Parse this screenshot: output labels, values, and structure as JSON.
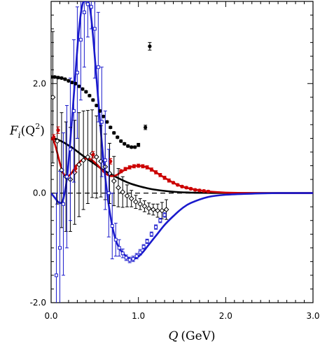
{
  "chart_data": {
    "type": "line",
    "title": "",
    "xlabel": "Q (GeV)",
    "xlabel_var": "Q",
    "xlabel_unit": "(GeV)",
    "ylabel": "F_i(Q^2)",
    "ylabel_main": "F",
    "ylabel_sub": "i",
    "ylabel_arg": "(Q",
    "ylabel_sup": "2",
    "ylabel_close": ")",
    "xlim": [
      0,
      3
    ],
    "ylim": [
      -2,
      3.5
    ],
    "x_ticks": [
      0.0,
      1.0,
      2.0,
      3.0
    ],
    "x_tick_labels": [
      "0.0",
      "1.0",
      "2.0",
      "3.0"
    ],
    "y_ticks": [
      -2.0,
      0.0,
      2.0
    ],
    "y_tick_labels": [
      "-2.0",
      "0.0",
      "2.0"
    ],
    "reference_line": {
      "y": 0,
      "style": "dashed",
      "color": "#000000"
    },
    "series": [
      {
        "kind": "curve",
        "color": "#000000",
        "x": [
          0,
          0.05,
          0.1,
          0.15,
          0.2,
          0.25,
          0.3,
          0.4,
          0.5,
          0.6,
          0.7,
          0.8,
          0.9,
          1.0,
          1.1,
          1.2,
          1.3,
          1.4,
          1.5,
          1.6,
          1.7,
          1.8,
          2.0,
          2.2,
          2.5,
          3.0
        ],
        "y": [
          1.0,
          0.99,
          0.96,
          0.92,
          0.87,
          0.82,
          0.76,
          0.64,
          0.53,
          0.42,
          0.33,
          0.25,
          0.18,
          0.13,
          0.09,
          0.06,
          0.04,
          0.025,
          0.015,
          0.01,
          0.006,
          0.004,
          0.002,
          0.001,
          0.0,
          0.0
        ]
      },
      {
        "kind": "curve",
        "color": "#cc0000",
        "x": [
          0,
          0.03,
          0.06,
          0.1,
          0.14,
          0.18,
          0.22,
          0.26,
          0.3,
          0.35,
          0.4,
          0.45,
          0.5,
          0.55,
          0.6,
          0.65,
          0.7,
          0.75,
          0.8,
          0.85,
          0.9,
          0.95,
          1.0,
          1.05,
          1.1,
          1.15,
          1.2,
          1.3,
          1.4,
          1.5,
          1.6,
          1.7,
          1.8,
          2.0,
          2.2,
          2.5,
          3.0
        ],
        "y": [
          1.0,
          0.95,
          0.8,
          0.55,
          0.36,
          0.3,
          0.34,
          0.43,
          0.52,
          0.6,
          0.63,
          0.62,
          0.56,
          0.48,
          0.39,
          0.33,
          0.31,
          0.33,
          0.38,
          0.43,
          0.47,
          0.49,
          0.5,
          0.49,
          0.47,
          0.43,
          0.38,
          0.28,
          0.19,
          0.12,
          0.08,
          0.05,
          0.03,
          0.01,
          0.003,
          0.0,
          0.0
        ]
      },
      {
        "kind": "curve",
        "color": "#1a1acc",
        "x": [
          0,
          0.04,
          0.08,
          0.11,
          0.14,
          0.18,
          0.22,
          0.27,
          0.32,
          0.36,
          0.4,
          0.43,
          0.46,
          0.5,
          0.55,
          0.6,
          0.65,
          0.7,
          0.75,
          0.8,
          0.85,
          0.9,
          0.95,
          1.0,
          1.05,
          1.1,
          1.2,
          1.3,
          1.4,
          1.5,
          1.6,
          1.8,
          2.0,
          2.3,
          2.6,
          3.0
        ],
        "y": [
          0.0,
          -0.08,
          -0.16,
          -0.18,
          -0.1,
          0.25,
          0.95,
          2.0,
          3.0,
          3.45,
          3.5,
          3.48,
          3.2,
          2.5,
          1.5,
          0.6,
          -0.1,
          -0.6,
          -0.9,
          -1.05,
          -1.14,
          -1.2,
          -1.2,
          -1.16,
          -1.08,
          -0.98,
          -0.78,
          -0.58,
          -0.42,
          -0.28,
          -0.18,
          -0.07,
          -0.03,
          -0.01,
          0.0,
          0.0
        ]
      },
      {
        "kind": "points",
        "marker": "filled-circle",
        "color": "#000000",
        "x": [
          0.0,
          0.04,
          0.08,
          0.12,
          0.16,
          0.2,
          0.24,
          0.28,
          0.32,
          0.36,
          0.4,
          0.44,
          0.48,
          0.52,
          0.56,
          0.6,
          0.64,
          0.68,
          0.72,
          0.76,
          0.8,
          0.84,
          0.88,
          0.92,
          0.96,
          1.0,
          1.08,
          1.13
        ],
        "y": [
          2.12,
          2.12,
          2.11,
          2.1,
          2.08,
          2.05,
          2.02,
          2.0,
          1.95,
          1.9,
          1.85,
          1.78,
          1.7,
          1.6,
          1.5,
          1.4,
          1.3,
          1.2,
          1.1,
          1.02,
          0.95,
          0.9,
          0.86,
          0.84,
          0.84,
          0.88,
          1.2,
          2.68
        ],
        "err": [
          0.02,
          0.02,
          0.02,
          0.02,
          0.02,
          0.02,
          0.02,
          0.02,
          0.02,
          0.02,
          0.02,
          0.02,
          0.02,
          0.02,
          0.02,
          0.02,
          0.02,
          0.02,
          0.02,
          0.02,
          0.02,
          0.02,
          0.02,
          0.02,
          0.02,
          0.03,
          0.04,
          0.07
        ]
      },
      {
        "kind": "points",
        "marker": "open-diamond",
        "color": "#000000",
        "x": [
          0.02,
          0.07,
          0.12,
          0.17,
          0.22,
          0.27,
          0.32,
          0.37,
          0.42,
          0.47,
          0.52,
          0.57,
          0.62,
          0.67,
          0.72,
          0.77,
          0.82,
          0.87,
          0.92,
          0.97,
          1.02,
          1.07,
          1.12,
          1.17,
          1.22,
          1.27,
          1.32
        ],
        "y": [
          1.75,
          0.95,
          0.42,
          0.3,
          0.25,
          0.38,
          0.52,
          0.6,
          0.66,
          0.72,
          0.66,
          0.58,
          0.48,
          0.36,
          0.22,
          0.1,
          0.02,
          -0.05,
          -0.1,
          -0.16,
          -0.2,
          -0.24,
          -0.28,
          -0.3,
          -0.32,
          -0.32,
          -0.3
        ],
        "err": [
          1.2,
          1.15,
          1.05,
          1.0,
          0.95,
          0.95,
          0.95,
          0.9,
          0.85,
          0.8,
          0.75,
          0.65,
          0.6,
          0.55,
          0.45,
          0.35,
          0.28,
          0.2,
          0.15,
          0.12,
          0.1,
          0.1,
          0.1,
          0.1,
          0.12,
          0.15,
          0.18
        ]
      },
      {
        "kind": "points",
        "marker": "filled-circle",
        "color": "#cc0000",
        "x": [
          0.03,
          0.08,
          0.28,
          0.48,
          0.68,
          0.8,
          0.85,
          0.9,
          0.95,
          1.0,
          1.05,
          1.1,
          1.15,
          1.2,
          1.25,
          1.3,
          1.35,
          1.4,
          1.45,
          1.5,
          1.55,
          1.6,
          1.65,
          1.7,
          1.75,
          1.8
        ],
        "y": [
          1.02,
          1.15,
          0.45,
          0.7,
          0.58,
          0.4,
          0.44,
          0.47,
          0.49,
          0.5,
          0.49,
          0.47,
          0.43,
          0.38,
          0.33,
          0.28,
          0.23,
          0.19,
          0.15,
          0.12,
          0.1,
          0.08,
          0.06,
          0.05,
          0.04,
          0.03
        ],
        "err": [
          0.05,
          0.06,
          0.06,
          0.06,
          0.05,
          0.03,
          0.03,
          0.03,
          0.03,
          0.03,
          0.03,
          0.03,
          0.03,
          0.03,
          0.03,
          0.03,
          0.03,
          0.02,
          0.02,
          0.02,
          0.02,
          0.02,
          0.02,
          0.02,
          0.02,
          0.02
        ]
      },
      {
        "kind": "points",
        "marker": "open-square",
        "color": "#1a1acc",
        "x": [
          0.06,
          0.1,
          0.14,
          0.18,
          0.22,
          0.26,
          0.3,
          0.34,
          0.38,
          0.42,
          0.46,
          0.5,
          0.54,
          0.58,
          0.62,
          0.66,
          0.7,
          0.74,
          0.78,
          0.82,
          0.86,
          0.9,
          0.94,
          0.98,
          1.02,
          1.06,
          1.1,
          1.15,
          1.2,
          1.25,
          1.3
        ],
        "y": [
          -1.5,
          -1.0,
          -0.2,
          0.3,
          0.8,
          1.5,
          2.2,
          2.8,
          3.3,
          3.45,
          3.4,
          3.0,
          2.3,
          1.3,
          0.6,
          0.0,
          -0.6,
          -0.85,
          -1.0,
          -1.1,
          -1.18,
          -1.22,
          -1.2,
          -1.15,
          -1.08,
          -0.98,
          -0.88,
          -0.75,
          -0.62,
          -0.5,
          -0.4
        ],
        "err": [
          1.5,
          1.4,
          1.3,
          1.3,
          1.3,
          1.3,
          1.2,
          1.1,
          1.0,
          0.6,
          0.4,
          0.9,
          1.0,
          1.0,
          0.9,
          0.8,
          0.6,
          0.3,
          0.15,
          0.08,
          0.05,
          0.05,
          0.05,
          0.05,
          0.05,
          0.04,
          0.04,
          0.04,
          0.04,
          0.04,
          0.04
        ]
      }
    ]
  }
}
